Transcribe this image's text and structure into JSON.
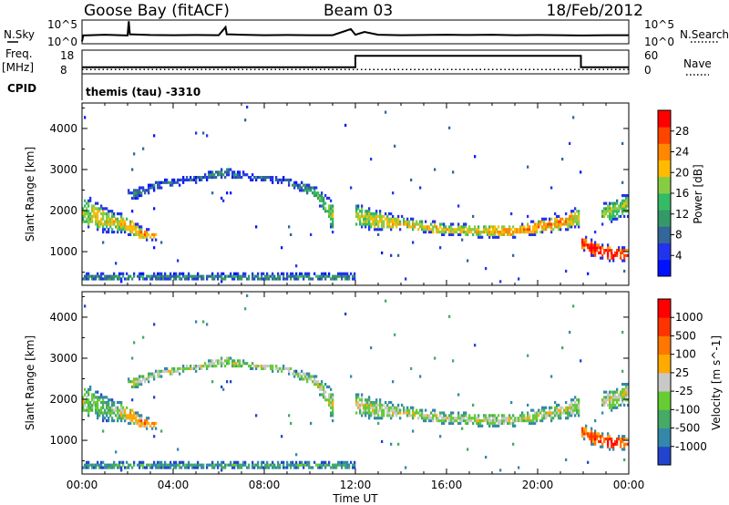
{
  "header": {
    "station": "Goose Bay (fitACF)",
    "beam": "Beam 03",
    "date": "18/Feb/2012"
  },
  "chart_data": [
    {
      "type": "line",
      "name": "noise-panel",
      "left_label": "N.Sky",
      "right_label": "N.Search",
      "left_ticks": [
        "10^5",
        "10^0"
      ],
      "right_ticks": [
        "10^5",
        "10^0"
      ],
      "xlim": [
        0,
        24
      ],
      "x": [
        0,
        0.05,
        1,
        2,
        2.05,
        2.1,
        3,
        4,
        5,
        6,
        6.3,
        6.35,
        7,
        8,
        9,
        10,
        11,
        11.8,
        12,
        12.4,
        13,
        14,
        15,
        16,
        17,
        18,
        19,
        20,
        21,
        22,
        23,
        24
      ],
      "y": [
        0.1,
        0.35,
        0.38,
        0.35,
        0.95,
        0.4,
        0.37,
        0.36,
        0.37,
        0.36,
        0.7,
        0.4,
        0.38,
        0.36,
        0.37,
        0.36,
        0.36,
        0.62,
        0.38,
        0.5,
        0.38,
        0.36,
        0.37,
        0.38,
        0.37,
        0.38,
        0.36,
        0.37,
        0.36,
        0.35,
        0.36,
        0.36
      ]
    },
    {
      "type": "line",
      "name": "frequency-panel",
      "left_label": "Freq.",
      "left_unit": "[MHz]",
      "left_ticks": [
        "18",
        "8"
      ],
      "right_label": "Nave",
      "right_ticks": [
        "60",
        "0"
      ],
      "cpid_label": "CPID",
      "cpid_text": "themis (tau)  -3310",
      "xlim": [
        0,
        24
      ],
      "freq_x": [
        0,
        12,
        12,
        21.9,
        21.9,
        24
      ],
      "freq_y": [
        10.8,
        10.8,
        15.6,
        15.6,
        10.8,
        10.8
      ],
      "nave_x": [
        0,
        24
      ],
      "nave_y": [
        11,
        11
      ]
    },
    {
      "type": "heatmap",
      "name": "power",
      "ylabel": "Slant Range [km]",
      "yticks": [
        1000,
        2000,
        3000,
        4000
      ],
      "ylim": [
        180,
        4620
      ],
      "colorbar_label": "Power [dB]",
      "colorbar_ticks": [
        "4",
        "8",
        "12",
        "16",
        "20",
        "24",
        "28"
      ],
      "colors": [
        "#0011ff",
        "#2233ee",
        "#336699",
        "#339966",
        "#33bb66",
        "#88cc44",
        "#ffbb00",
        "#ff8800",
        "#ff4400",
        "#ff0000"
      ],
      "bands": [
        {
          "x": [
            0.0,
            0.6,
            1.2,
            2.0,
            2.6,
            3.3
          ],
          "center": [
            2000,
            1850,
            1750,
            1650,
            1450,
            1380
          ],
          "width": [
            750,
            750,
            550,
            450,
            320,
            200
          ],
          "level": [
            5,
            6,
            6,
            6,
            7,
            7
          ]
        },
        {
          "x": [
            2.0,
            3.5,
            5.0,
            6.2,
            7.5,
            9.0,
            10.3,
            11.0
          ],
          "center": [
            2350,
            2650,
            2780,
            2920,
            2820,
            2720,
            2420,
            1850
          ],
          "width": [
            300,
            200,
            200,
            300,
            150,
            170,
            300,
            800
          ],
          "level": [
            3,
            2,
            2,
            3,
            2,
            2,
            4,
            5
          ]
        },
        {
          "x": [
            12.0,
            13.0,
            14.5,
            16.0,
            17.5,
            19.0,
            20.0,
            21.0,
            21.8
          ],
          "center": [
            1900,
            1750,
            1650,
            1550,
            1500,
            1500,
            1600,
            1700,
            1850
          ],
          "width": [
            600,
            500,
            300,
            300,
            300,
            300,
            350,
            400,
            500
          ],
          "level": [
            5,
            6,
            6,
            6,
            6,
            7,
            7,
            7,
            6
          ]
        },
        {
          "x": [
            21.9,
            22.5,
            23.2,
            24.0
          ],
          "center": [
            1250,
            1050,
            950,
            950
          ],
          "width": [
            350,
            400,
            400,
            350
          ],
          "level": [
            8,
            9,
            9,
            8
          ]
        },
        {
          "x": [
            22.8,
            24.0
          ],
          "center": [
            1900,
            2150
          ],
          "width": [
            500,
            600
          ],
          "level": [
            5,
            5
          ]
        },
        {
          "x": [
            0.0,
            12.0
          ],
          "center": [
            390,
            390
          ],
          "width": [
            180,
            180
          ],
          "level": [
            3,
            3
          ]
        }
      ]
    },
    {
      "type": "heatmap",
      "name": "velocity",
      "ylabel": "Slant Range [km]",
      "yticks": [
        1000,
        2000,
        3000,
        4000
      ],
      "ylim": [
        180,
        4620
      ],
      "xlabel": "Time UT",
      "xticks": [
        "00:00",
        "04:00",
        "08:00",
        "12:00",
        "16:00",
        "20:00",
        "00:00"
      ],
      "colorbar_label": "Velocity [m s^-1]",
      "colorbar_ticks": [
        "1000",
        "500",
        "100",
        "25",
        "-25",
        "-100",
        "-500",
        "-1000"
      ],
      "colors": [
        "#2244cc",
        "#3388aa",
        "#44aa66",
        "#66cc33",
        "#c8c8c8",
        "#ffaa00",
        "#ff7700",
        "#ff3300",
        "#ff0000"
      ],
      "bands": [
        {
          "x": [
            0.0,
            0.6,
            1.2,
            2.0,
            2.6,
            3.3
          ],
          "center": [
            2000,
            1850,
            1750,
            1650,
            1450,
            1380
          ],
          "width": [
            750,
            750,
            550,
            450,
            320,
            200
          ],
          "level": [
            4,
            3,
            3,
            5,
            6,
            6
          ]
        },
        {
          "x": [
            2.0,
            3.5,
            5.0,
            6.2,
            7.5,
            9.0,
            10.3,
            11.0
          ],
          "center": [
            2350,
            2650,
            2780,
            2920,
            2820,
            2720,
            2420,
            1850
          ],
          "width": [
            300,
            200,
            200,
            300,
            150,
            170,
            300,
            800
          ],
          "level": [
            4,
            4,
            4,
            4,
            4,
            4,
            4,
            4
          ]
        },
        {
          "x": [
            12.0,
            13.0,
            14.5,
            16.0,
            17.5,
            19.0,
            20.0,
            21.0,
            21.8
          ],
          "center": [
            1900,
            1750,
            1650,
            1550,
            1500,
            1500,
            1600,
            1700,
            1850
          ],
          "width": [
            600,
            500,
            300,
            300,
            300,
            300,
            350,
            400,
            500
          ],
          "level": [
            4,
            4,
            4,
            4,
            4,
            4,
            4,
            4,
            4
          ]
        },
        {
          "x": [
            21.9,
            22.5,
            23.2,
            24.0
          ],
          "center": [
            1250,
            1050,
            950,
            950
          ],
          "width": [
            350,
            400,
            400,
            350
          ],
          "level": [
            6,
            7,
            8,
            6
          ]
        },
        {
          "x": [
            22.8,
            24.0
          ],
          "center": [
            1900,
            2150
          ],
          "width": [
            500,
            600
          ],
          "level": [
            4,
            4
          ]
        },
        {
          "x": [
            0.0,
            12.0
          ],
          "center": [
            390,
            390
          ],
          "width": [
            180,
            180
          ],
          "level": [
            2,
            2
          ]
        }
      ]
    }
  ]
}
